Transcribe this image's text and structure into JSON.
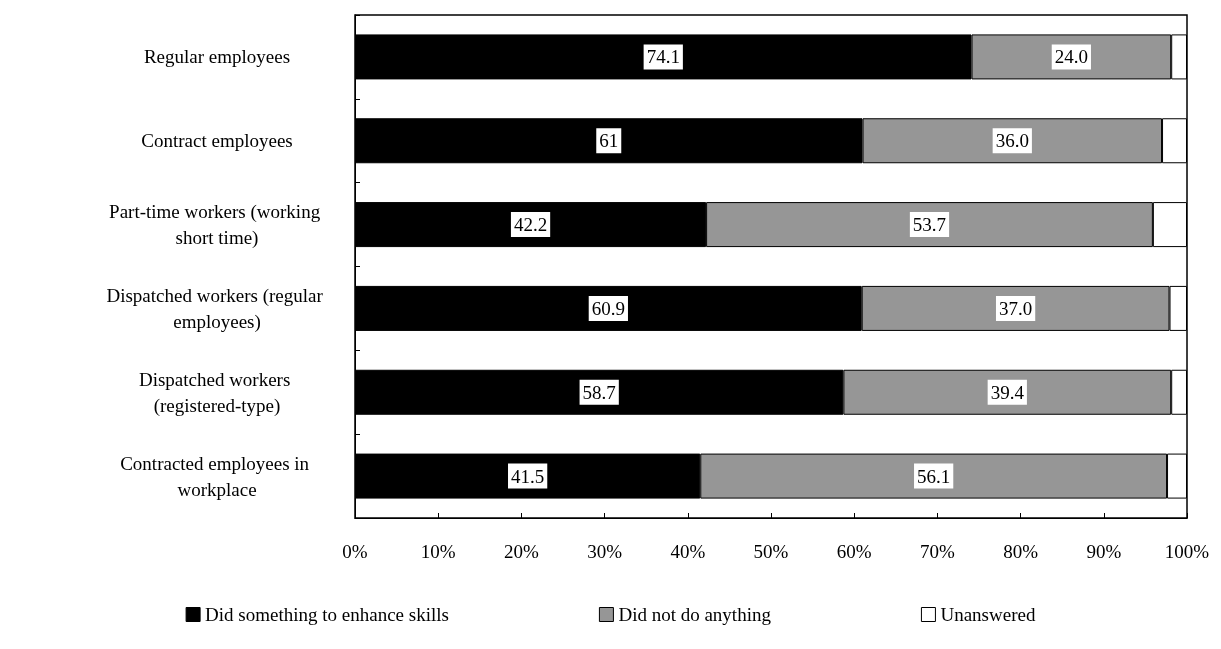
{
  "chart_data": {
    "type": "bar",
    "orientation": "horizontal",
    "stacked": true,
    "categories": [
      "Regular employees",
      "Contract employees",
      "Part-time workers (working short time)",
      "Dispatched workers (regular employees)",
      "Dispatched workers (registered-type)",
      "Contracted employees in workplace"
    ],
    "series": [
      {
        "name": "Did something to enhance skills",
        "color": "#000000",
        "values": [
          74.1,
          61,
          42.2,
          60.9,
          58.7,
          41.5
        ],
        "value_labels": [
          "74.1",
          "61",
          "42.2",
          "60.9",
          "58.7",
          "41.5"
        ]
      },
      {
        "name": "Did not do anything",
        "color": "#969696",
        "values": [
          24.0,
          36.0,
          53.7,
          37.0,
          39.4,
          56.1
        ],
        "value_labels": [
          "24.0",
          "36.0",
          "53.7",
          "37.0",
          "39.4",
          "56.1"
        ]
      },
      {
        "name": "Unanswered",
        "color": "#ffffff",
        "values": [
          1.9,
          3.0,
          4.1,
          2.1,
          1.9,
          2.4
        ]
      }
    ],
    "xlim": [
      0,
      100
    ],
    "xticks": [
      {
        "value": 0,
        "label": "0%"
      },
      {
        "value": 10,
        "label": "10%"
      },
      {
        "value": 20,
        "label": "20%"
      },
      {
        "value": 30,
        "label": "30%"
      },
      {
        "value": 40,
        "label": "40%"
      },
      {
        "value": 50,
        "label": "50%"
      },
      {
        "value": 60,
        "label": "60%"
      },
      {
        "value": 70,
        "label": "70%"
      },
      {
        "value": 80,
        "label": "80%"
      },
      {
        "value": 90,
        "label": "90%"
      },
      {
        "value": 100,
        "label": "100%"
      }
    ],
    "legend": "bottom",
    "grid": false
  }
}
